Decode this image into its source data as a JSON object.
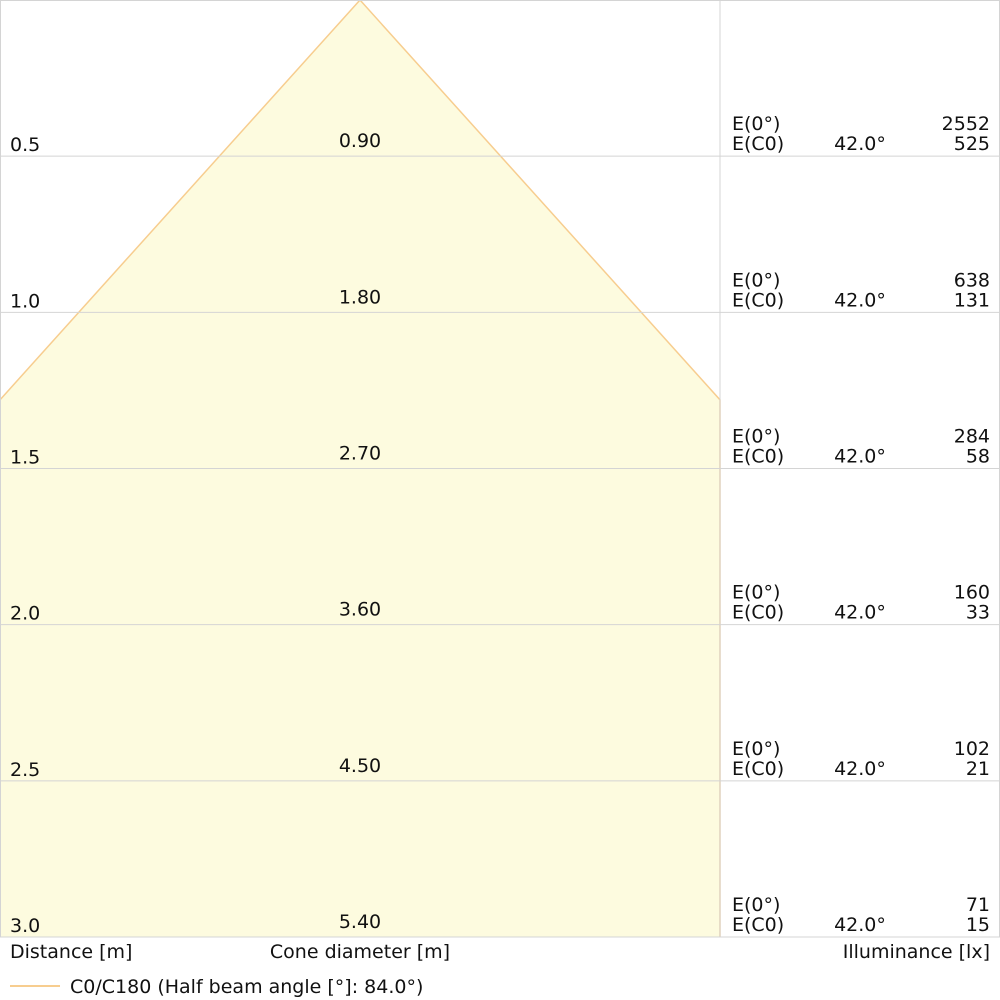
{
  "chart_data": {
    "type": "cone-diagram",
    "xlabel": "Distance [m]",
    "center_label": "Cone diameter [m]",
    "ylabel": "Illuminance [lx]",
    "legend": "C0/C180 (Half beam angle [°]: 84.0°)",
    "center_row_label": "E(0°)",
    "edge_row_label": "E(C0)",
    "edge_angle": "42.0°",
    "rows": [
      {
        "distance": "0.5",
        "diameter": "0.90",
        "e_center": "2552",
        "e_edge": "525"
      },
      {
        "distance": "1.0",
        "diameter": "1.80",
        "e_center": "638",
        "e_edge": "131"
      },
      {
        "distance": "1.5",
        "diameter": "2.70",
        "e_center": "284",
        "e_edge": "58"
      },
      {
        "distance": "2.0",
        "diameter": "3.60",
        "e_center": "160",
        "e_edge": "33"
      },
      {
        "distance": "2.5",
        "diameter": "4.50",
        "e_center": "102",
        "e_edge": "21"
      },
      {
        "distance": "3.0",
        "diameter": "5.40",
        "e_center": "71",
        "e_edge": "15"
      }
    ],
    "half_beam_angle_deg": 84.0,
    "max_distance": 3.0,
    "colors": {
      "cone_fill": "#fdfbdf",
      "cone_stroke": "#f7cd8f",
      "grid": "#d4d4d4"
    }
  }
}
